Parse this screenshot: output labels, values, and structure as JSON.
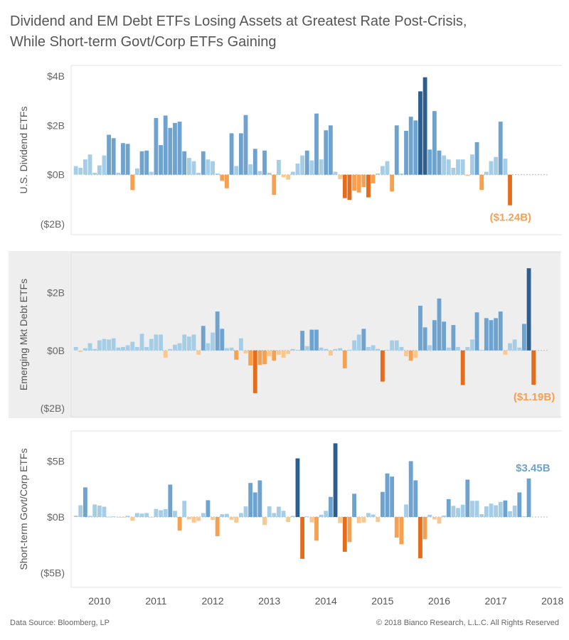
{
  "title": {
    "line1": "Dividend and EM Debt ETFs Losing Assets at Greatest Rate Post-Crisis,",
    "line2": "While Short-term Govt/Corp ETFs Gaining"
  },
  "footer": {
    "source": "Data Source: Bloomberg, LP",
    "copyright": "© 2018 Bianco Research, L.L.C. All Rights Reserved"
  },
  "colors": {
    "positive_light": "#a6cde6",
    "positive_mid": "#6fa3cf",
    "positive_dark": "#2c5f8f",
    "negative_light": "#fbc78c",
    "negative_mid": "#f7a04f",
    "negative_dark": "#e46c1c",
    "panel_highlight_bg": "#eeeeee",
    "zero_line": "#bbbbbb",
    "text": "#555555"
  },
  "chart_data": [
    {
      "type": "bar",
      "ylabel": "U.S. Dividend ETFs",
      "y_ticks": [
        "$4B",
        "$2B",
        "$0B",
        "($2B)"
      ],
      "y_tick_values": [
        4,
        2,
        0,
        -2
      ],
      "ylim": [
        -2.2,
        4.2
      ],
      "x_ticks": [
        "2010",
        "2011",
        "2012",
        "2013",
        "2014",
        "2015",
        "2016",
        "2017",
        "2018"
      ],
      "x_range": [
        "2009-07",
        "2018-03"
      ],
      "start_month": "2009-08",
      "end_label": "($1.24B)",
      "highlight": false,
      "values_billions": [
        0.35,
        0.28,
        0.62,
        0.82,
        0.08,
        0.38,
        0.78,
        1.62,
        1.48,
        0.08,
        1.28,
        1.25,
        -0.62,
        0.25,
        0.95,
        0.98,
        0.12,
        2.3,
        1.2,
        2.4,
        1.9,
        2.1,
        2.15,
        0.95,
        0.68,
        0.55,
        0.08,
        0.95,
        0.62,
        0.55,
        0.05,
        -0.25,
        -0.55,
        1.68,
        0.35,
        1.68,
        2.42,
        0.42,
        1.05,
        0.15,
        0.98,
        0.08,
        -0.82,
        0.6,
        -0.1,
        -0.2,
        0.12,
        0.45,
        0.78,
        0.98,
        0.58,
        2.48,
        0.62,
        1.8,
        2.0,
        0.12,
        -0.18,
        -0.95,
        -1.02,
        -0.65,
        -0.72,
        -0.5,
        -0.92,
        -0.35,
        0.05,
        0.35,
        0.55,
        -0.68,
        2.0,
        0.05,
        1.78,
        2.35,
        2.2,
        3.38,
        3.95,
        1.02,
        2.58,
        0.98,
        0.78,
        0.62,
        0.28,
        0.62,
        0.62,
        -0.05,
        0.82,
        1.32,
        -0.62,
        0.12,
        0.55,
        0.72,
        2.15,
        0.65,
        -1.24
      ]
    },
    {
      "type": "bar",
      "ylabel": "Emerging Mkt Debt ETFs",
      "y_ticks": [
        "$2B",
        "$0B",
        "($2B)"
      ],
      "y_tick_values": [
        2,
        0,
        -2
      ],
      "ylim": [
        -2.1,
        3.2
      ],
      "x_ticks": [
        "2010",
        "2011",
        "2012",
        "2013",
        "2014",
        "2015",
        "2016",
        "2017",
        "2018"
      ],
      "x_range": [
        "2009-07",
        "2018-03"
      ],
      "start_month": "2009-08",
      "end_label": "($1.19B)",
      "highlight": true,
      "values_billions": [
        0.12,
        -0.05,
        0.08,
        0.25,
        0.05,
        0.35,
        0.4,
        0.38,
        0.42,
        0.1,
        0.12,
        0.18,
        0.3,
        0.12,
        0.58,
        0.12,
        0.4,
        0.55,
        0.55,
        -0.25,
        0.05,
        0.2,
        0.25,
        0.55,
        0.48,
        0.55,
        -0.15,
        0.85,
        0.25,
        0.62,
        1.35,
        0.75,
        0.08,
        0.1,
        -0.32,
        0.42,
        -0.1,
        -0.52,
        -1.48,
        -0.5,
        -0.48,
        -0.2,
        -0.35,
        -0.15,
        -0.25,
        -0.12,
        0.05,
        0.02,
        0.68,
        0.15,
        0.72,
        0.72,
        0.1,
        0.05,
        -0.18,
        0.05,
        0.08,
        -0.62,
        0.02,
        0.35,
        0.55,
        0.75,
        0.12,
        0.18,
        0.05,
        -1.08,
        0.02,
        0.35,
        0.35,
        0.12,
        -0.2,
        -0.35,
        -0.25,
        1.55,
        0.8,
        0.18,
        1.05,
        1.8,
        1.0,
        0.1,
        0.88,
        0.12,
        -1.2,
        0.12,
        0.38,
        1.32,
        0.02,
        1.12,
        1.05,
        1.12,
        1.35,
        -0.15,
        0.25,
        0.38,
        0.1,
        0.92,
        2.85,
        -1.19
      ]
    },
    {
      "type": "bar",
      "ylabel": "Short-term Govt/Corp ETFs",
      "y_ticks": [
        "$5B",
        "$0B",
        "($5B)"
      ],
      "y_tick_values": [
        5,
        0,
        -5
      ],
      "ylim": [
        -5.8,
        7.2
      ],
      "x_ticks": [
        "2010",
        "2011",
        "2012",
        "2013",
        "2014",
        "2015",
        "2016",
        "2017",
        "2018"
      ],
      "x_range": [
        "2009-07",
        "2018-03"
      ],
      "start_month": "2009-08",
      "end_label": "$3.45B",
      "highlight": false,
      "values_billions": [
        0.12,
        1.05,
        2.65,
        0.1,
        1.12,
        1.02,
        0.92,
        0.02,
        0.05,
        -0.05,
        -0.02,
        0.1,
        -0.35,
        0.35,
        0.3,
        0.35,
        -0.05,
        0.72,
        0.6,
        0.7,
        2.9,
        0.55,
        -1.22,
        1.45,
        -0.22,
        -0.5,
        -0.35,
        0.35,
        1.5,
        -0.25,
        -1.72,
        0.25,
        0.28,
        -0.25,
        -0.5,
        0.35,
        0.95,
        3.05,
        2.2,
        3.28,
        -0.72,
        0.95,
        0.35,
        0.92,
        0.55,
        -0.45,
        0.1,
        5.25,
        -3.75,
        0.05,
        -0.48,
        -2.12,
        0.2,
        0.55,
        1.8,
        6.6,
        -0.55,
        -3.12,
        -2.25,
        2.08,
        -0.55,
        -0.5,
        0.35,
        0.22,
        -0.45,
        2.25,
        3.9,
        3.62,
        -1.85,
        -2.45,
        1.12,
        5.0,
        3.28,
        -3.7,
        -2.0,
        0.2,
        -0.22,
        -0.6,
        0.12,
        1.6,
        1.0,
        0.8,
        1.1,
        3.35,
        1.45,
        1.45,
        0.25,
        0.95,
        1.2,
        1.05,
        1.35,
        1.48,
        0.52,
        1.02,
        2.2,
        0.05,
        3.45
      ]
    }
  ]
}
